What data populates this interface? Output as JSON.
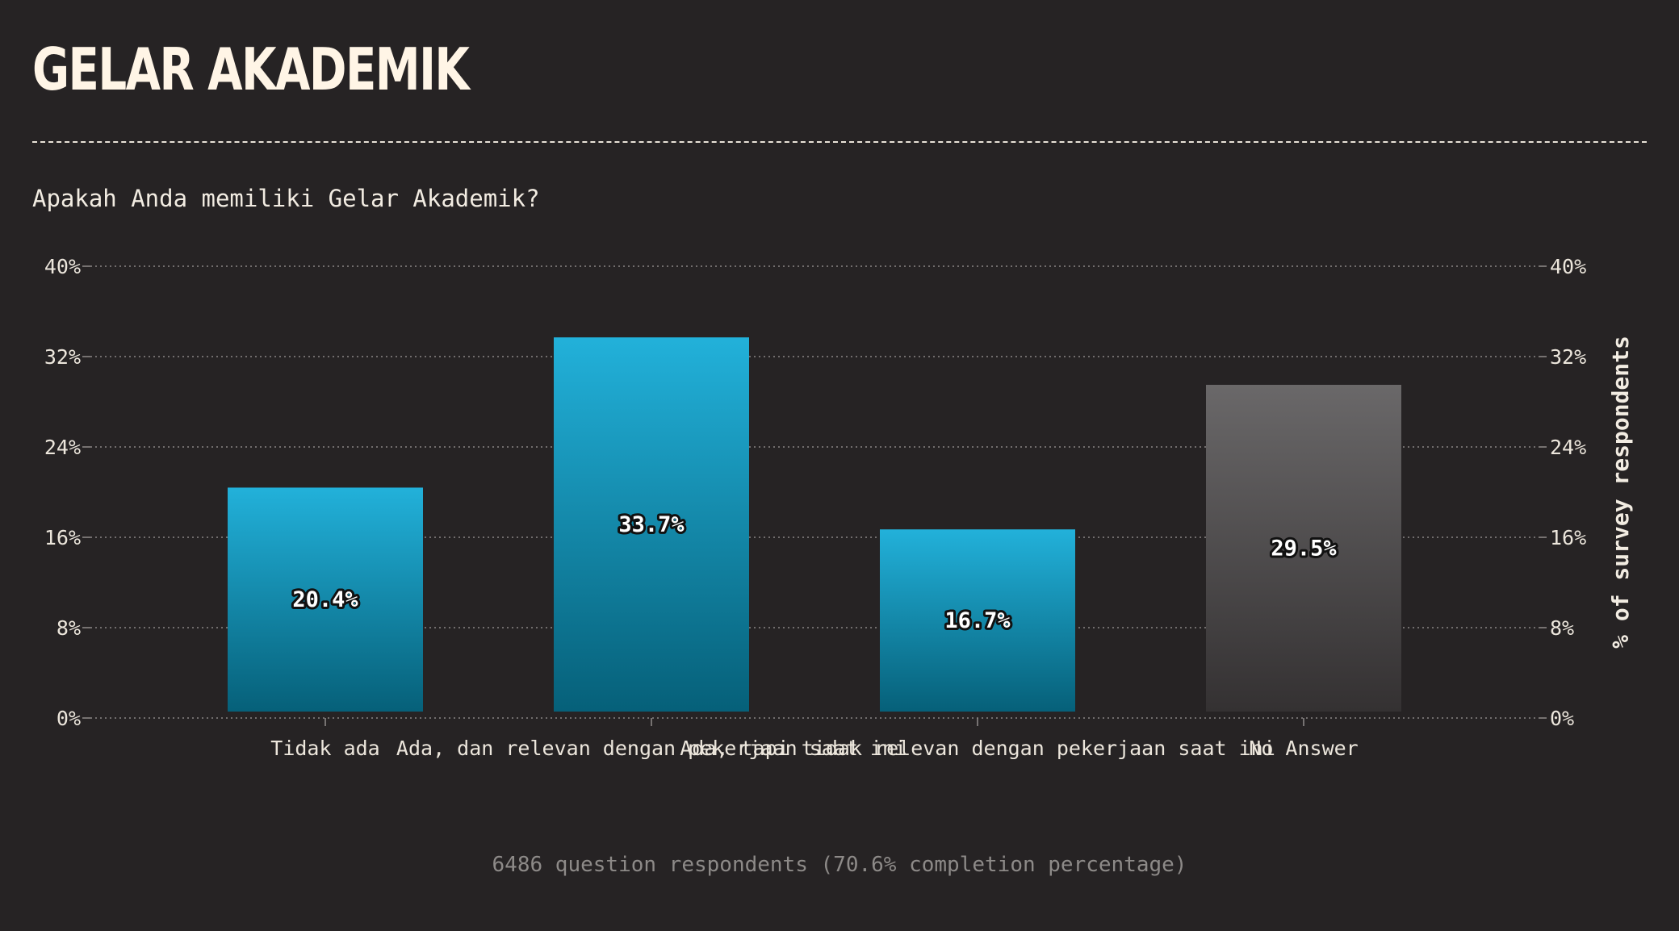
{
  "page": {
    "title": "GELAR AKADEMIK",
    "question": "Apakah Anda memiliki Gelar Akademik?",
    "footer": "6486 question respondents (70.6% completion percentage)"
  },
  "colors": {
    "background": "#262324",
    "bar_primary_top": "#22b1da",
    "bar_primary_bottom": "#066079",
    "bar_no_answer_top": "#6a6869",
    "bar_no_answer_bottom": "#343132",
    "grid": "#8a8685",
    "text": "#ece6dc"
  },
  "chart_data": {
    "type": "bar",
    "categories": [
      "Tidak ada",
      "Ada, dan relevan dengan pekerjaan saat ini",
      "Ada, tapi tidak relevan dengan pekerjaan saat ini",
      "No Answer"
    ],
    "values": [
      20.4,
      33.7,
      16.7,
      29.5
    ],
    "value_labels": [
      "20.4%",
      "33.7%",
      "16.7%",
      "29.5%"
    ],
    "bar_styles": [
      "primary",
      "primary",
      "primary",
      "no-answer"
    ],
    "ylim": [
      0,
      40
    ],
    "yticks": [
      0,
      8,
      16,
      24,
      32,
      40
    ],
    "ytick_labels": [
      "0%",
      "8%",
      "16%",
      "24%",
      "32%",
      "40%"
    ],
    "ylabel": "% of survey respondents",
    "xlabel": "",
    "grid": true,
    "y_axis_sides": [
      "left",
      "right"
    ]
  }
}
